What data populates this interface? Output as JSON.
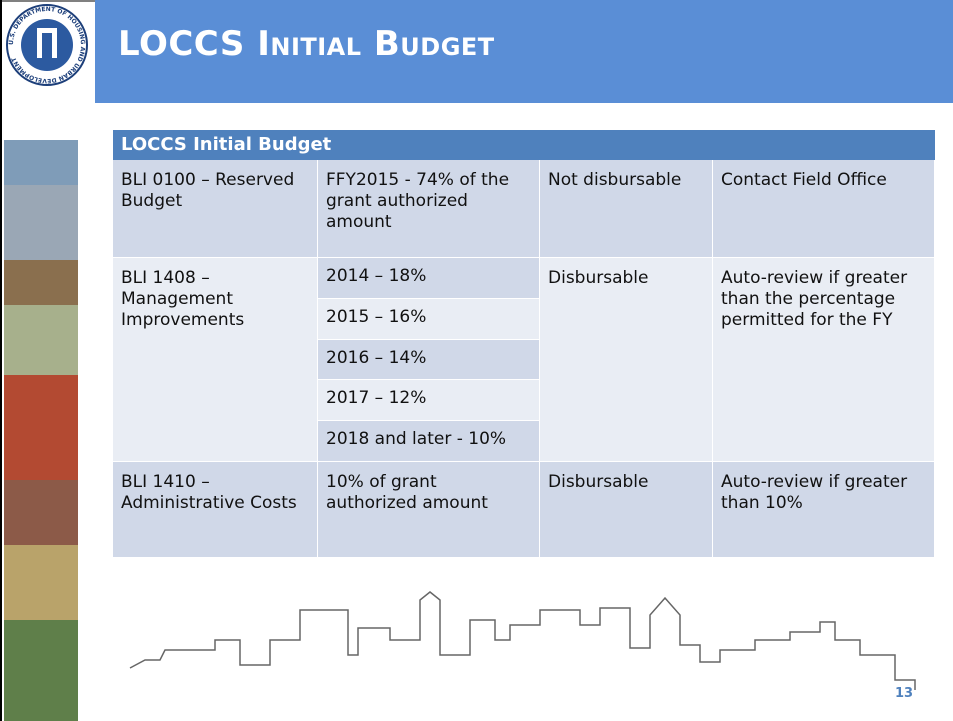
{
  "header": {
    "title": "LOCCS Initial Budget",
    "seal_text": "U.S. DEPARTMENT OF HOUSING AND URBAN DEVELOPMENT"
  },
  "table": {
    "title": "LOCCS Initial Budget",
    "rows": [
      {
        "item": "BLI 0100 – Reserved Budget",
        "amounts": [
          "FFY2015 - 74% of the grant authorized amount"
        ],
        "status": "Not disbursable",
        "action": "Contact Field Office"
      },
      {
        "item": "BLI 1408 – Management Improvements",
        "amounts": [
          "2014 – 18%",
          "2015 – 16%",
          "2016 – 14%",
          "2017 – 12%",
          "2018 and later - 10%"
        ],
        "status": "Disbursable",
        "action": "Auto-review if greater than the percentage permitted for the FY"
      },
      {
        "item": "BLI 1410 – Administrative Costs",
        "amounts": [
          "10% of grant authorized amount"
        ],
        "status": "Disbursable",
        "action": "Auto-review if greater than 10%"
      }
    ]
  },
  "footer": {
    "page_number": "13"
  }
}
